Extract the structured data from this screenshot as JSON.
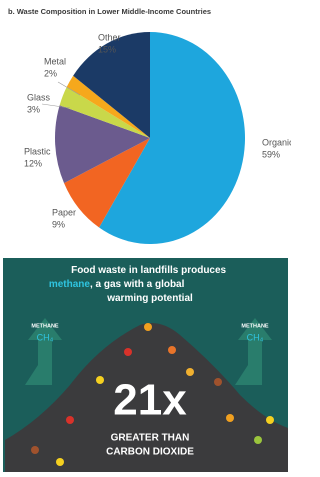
{
  "chart_data": {
    "type": "pie",
    "title": "b. Waste Composition in Lower Middle-Income Countries",
    "categories": [
      "Organic",
      "Paper",
      "Plastic",
      "Glass",
      "Metal",
      "Other"
    ],
    "values": [
      59,
      9,
      12,
      3,
      2,
      15
    ],
    "value_labels": [
      "59%",
      "9%",
      "12%",
      "3%",
      "2%",
      "15%"
    ],
    "colors": [
      "#1ea6dd",
      "#f26522",
      "#6b5b8e",
      "#c9d84a",
      "#f6a81c",
      "#1b3a66"
    ]
  },
  "infographic": {
    "headline": [
      "Food waste in landfills produces",
      "methane",
      ", a gas with a global",
      "warming potential"
    ],
    "gas_label_left": "METHANE",
    "formula_left": "CH₄",
    "gas_label_right": "METHANE",
    "formula_right": "CH₄",
    "multiplier": "21x",
    "comparison": [
      "GREATER THAN",
      "CARBON DIOXIDE"
    ]
  }
}
